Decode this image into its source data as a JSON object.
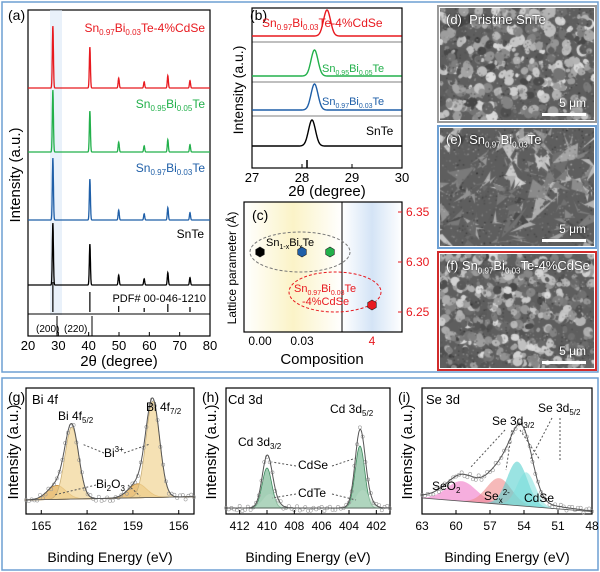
{
  "colors": {
    "red": "#e8191f",
    "green": "#22b04b",
    "blue": "#1f5fa8",
    "black": "#000000",
    "panel_border_blue": "#6d9fd2",
    "panel_border_red": "#d12b2b",
    "bi_fill": "#f2d79b",
    "se_pink": "#f28bd0",
    "se_red": "#f08a8a",
    "se_teal": "#56d0cf"
  },
  "panel_a": {
    "tag": "(a)",
    "labels": {
      "cdse": "Sn0.97Bi0.03Te-4%CdSe",
      "bi005": "Sn0.95Bi0.05Te",
      "bi003": "Sn0.97Bi0.03Te",
      "snte": "SnTe",
      "pdf": "PDF# 00-046-1210",
      "h200": "(200)",
      "h220": "(220)"
    },
    "ylabel": "Intensity (a.u.)",
    "xlabel": "2θ (degree)",
    "xticks": [
      "20",
      "30",
      "40",
      "50",
      "60",
      "70",
      "80"
    ],
    "chart_data": {
      "type": "line",
      "xlim": [
        20,
        80
      ],
      "peak_positions": [
        28.2,
        40.4,
        49.9,
        58.3,
        66.1,
        73.4
      ],
      "series": [
        {
          "name": "Sn0.97Bi0.03Te-4%CdSe",
          "heights": [
            1.0,
            0.66,
            0.16,
            0.1,
            0.2,
            0.12
          ]
        },
        {
          "name": "Sn0.95Bi0.05Te",
          "heights": [
            1.0,
            0.66,
            0.16,
            0.1,
            0.2,
            0.12
          ]
        },
        {
          "name": "Sn0.97Bi0.03Te",
          "heights": [
            1.0,
            0.66,
            0.16,
            0.1,
            0.2,
            0.12
          ]
        },
        {
          "name": "SnTe",
          "heights": [
            1.0,
            0.66,
            0.16,
            0.1,
            0.2,
            0.12
          ]
        }
      ],
      "reference_sticks": [
        28.2,
        40.4,
        49.9,
        58.3,
        66.1,
        73.4
      ]
    }
  },
  "panel_b": {
    "tag": "(b)",
    "labels": {
      "cdse": "Sn0.97Bi0.03Te-4%CdSe",
      "bi005": "Sn0.95Bi0.05Te",
      "bi003": "Sn0.97Bi0.03Te",
      "snte": "SnTe"
    },
    "ylabel": "Intensity (a.u.)",
    "xlabel": "2θ (degree)",
    "xticks": [
      "27",
      "28",
      "29",
      "30"
    ],
    "chart_data": {
      "type": "line",
      "xlim": [
        27,
        30
      ],
      "peak_centers": [
        28.5,
        28.25,
        28.25,
        28.2
      ],
      "series": [
        "Sn0.97Bi0.03Te-4%CdSe",
        "Sn0.95Bi0.05Te",
        "Sn0.97Bi0.03Te",
        "SnTe"
      ]
    }
  },
  "panel_c": {
    "tag": "(c)",
    "ylabel": "Lattice parameter (Å)",
    "xlabel": "Composition",
    "xticks": [
      "0.00",
      "0.03",
      "4"
    ],
    "yticks": [
      "6.25",
      "6.30",
      "6.35"
    ],
    "group_label": "Sn1-xBixTe",
    "cdse_label_1": "Sn0.97Bi0.03Te",
    "cdse_label_2": "-4%CdSe",
    "chart_data": {
      "type": "scatter",
      "ylim": [
        6.23,
        6.36
      ],
      "points": [
        {
          "x": "0.00",
          "y": 6.31
        },
        {
          "x": "0.03",
          "y": 6.31
        },
        {
          "x": "0.05",
          "y": 6.31
        },
        {
          "x": "4",
          "y": 6.257
        }
      ]
    }
  },
  "panel_d": {
    "tag": "(d)",
    "title": "Pristine SnTe",
    "scale": "5 μm"
  },
  "panel_e": {
    "tag": "(e)",
    "title": "Sn0.97Bi0.03Te",
    "scale": "5 μm"
  },
  "panel_f": {
    "tag": "(f)",
    "title": "Sn0.97Bi0.03Te-4%CdSe",
    "scale": "5 μm"
  },
  "panel_g": {
    "tag": "(g)",
    "title": "Bi 4f",
    "peak1": "Bi 4f5/2",
    "peak2": "Bi 4f7/2",
    "bi3": "Bi3+",
    "bi2o3": "Bi2O3",
    "ylabel": "Intensity (a.u.)",
    "xlabel": "Binding Energy (eV)",
    "xticks": [
      "165",
      "162",
      "159",
      "156"
    ],
    "chart_data": {
      "type": "area",
      "xlim": [
        166,
        155
      ],
      "peaks": [
        163.0,
        157.7,
        164.0,
        158.7
      ]
    }
  },
  "panel_h": {
    "tag": "(h)",
    "title": "Cd 3d",
    "peak1": "Cd 3d3/2",
    "peak2": "Cd 3d5/2",
    "cdse": "CdSe",
    "cdte": "CdTe",
    "ylabel": "Intensity (a.u.)",
    "xlabel": "Binding Energy (eV)",
    "xticks": [
      "412",
      "410",
      "408",
      "406",
      "404",
      "402"
    ],
    "chart_data": {
      "type": "area",
      "xlim": [
        413,
        401
      ],
      "peaks": [
        410.0,
        403.2
      ]
    }
  },
  "panel_i": {
    "tag": "(i)",
    "title": "Se 3d",
    "peak1": "Se 3d3/2",
    "peak2": "Se 3d5/2",
    "seo2": "SeO2",
    "sex": "Sex2-",
    "cdse": "CdSe",
    "ylabel": "Intensity (a.u.)",
    "xlabel": "Binding Energy (eV)",
    "xticks": [
      "63",
      "60",
      "57",
      "54",
      "51",
      "48"
    ],
    "chart_data": {
      "type": "area",
      "xlim": [
        63,
        48
      ],
      "peaks": [
        59.0,
        55.5,
        54.0
      ]
    }
  }
}
